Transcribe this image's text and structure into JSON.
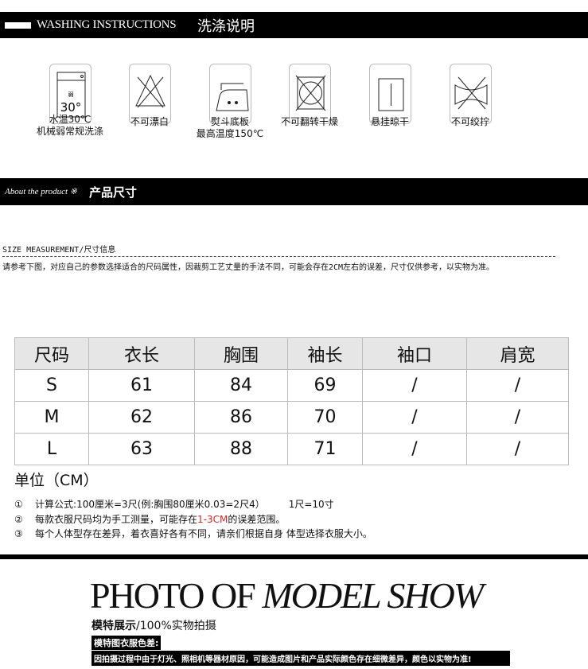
{
  "washing": {
    "title_en": "WASHING INSTRUCTIONS",
    "title_cn": "洗涤说明",
    "items": [
      {
        "icon": "machine-wash-30-icon",
        "line1": "水温30℃",
        "line2": "机械弱常规洗涤",
        "icon_text": "弱",
        "icon_temp": "30°"
      },
      {
        "icon": "no-bleach-icon",
        "line1": "不可漂白",
        "line2": ""
      },
      {
        "icon": "iron-150-icon",
        "line1": "熨斗底板",
        "line2": "最高温度150℃"
      },
      {
        "icon": "no-tumble-dry-icon",
        "line1": "不可翻转干燥",
        "line2": ""
      },
      {
        "icon": "line-dry-icon",
        "line1": "悬挂晾干",
        "line2": ""
      },
      {
        "icon": "no-wring-icon",
        "line1": "不可绞拧",
        "line2": ""
      }
    ]
  },
  "product": {
    "title_en": "About the product",
    "mark": "※",
    "title_cn": "产品尺寸"
  },
  "measurement": {
    "heading": "SIZE MEASUREMENT/尺寸信息",
    "note": "请参考下图，对应自己的参数选择适合的尺码属性，因裁剪工艺丈量的手法不同，可能会存在2CM左右的误差，尺寸仅供参考，以实物为准。"
  },
  "size_table": {
    "headers": [
      "尺码",
      "衣长",
      "胸围",
      "袖长",
      "袖口",
      "肩宽"
    ],
    "rows": [
      [
        "S",
        "61",
        "84",
        "69",
        "/",
        "/"
      ],
      [
        "M",
        "62",
        "86",
        "70",
        "/",
        "/"
      ],
      [
        "L",
        "63",
        "88",
        "71",
        "/",
        "/"
      ]
    ]
  },
  "unit": "单位（CM）",
  "notes": [
    {
      "num": "①",
      "text": "计算公式:100厘米=3尺(例:胸围80厘米0.03=2尺4）",
      "extra": "1尺=10寸"
    },
    {
      "num": "②",
      "pre": "每款衣服尺码均为手工测量，可能存在",
      "red": "1-3CM",
      "post": "的误差范围。"
    },
    {
      "num": "③",
      "text": "每个人体型存在差异，着衣喜好各有不同，请亲们根据自身 体型选择衣服大小。"
    }
  ],
  "model": {
    "title_a": "PHOTO OF",
    "title_b": "MODEL SHOW",
    "subtitle_bold": "模特展示",
    "subtitle": "/100%实物拍摄",
    "label": "模特图衣服色差:",
    "disclaimer": "因拍摄过程中由于灯光、照相机等器材原因，可能造成图片和产品实际颜色存在细微差异，颜色以实物为准!"
  },
  "colors": {
    "bar": "#000000",
    "header_bg": "#e6e6e6",
    "red": "#e02020"
  }
}
